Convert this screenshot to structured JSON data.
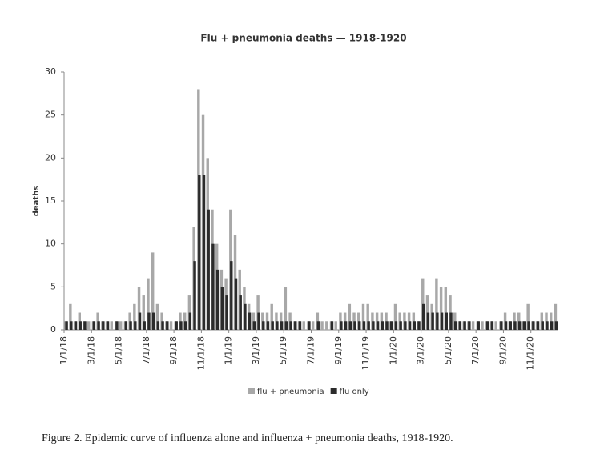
{
  "chart_data": {
    "type": "bar",
    "title": "Flu + pneumonia deaths — 1918-1920",
    "y_label": "deaths",
    "caption": "Figure 2. Epidemic curve of influenza alone and influenza + pneumonia deaths, 1918-1920.",
    "categories": [
      "1/1/18",
      null,
      null,
      null,
      null,
      null,
      "3/1/18",
      null,
      null,
      null,
      null,
      null,
      "5/1/18",
      null,
      null,
      null,
      null,
      null,
      "7/1/18",
      null,
      null,
      null,
      null,
      null,
      "9/1/18",
      null,
      null,
      null,
      null,
      null,
      "11/1/18",
      null,
      null,
      null,
      null,
      null,
      "1/1/19",
      null,
      null,
      null,
      null,
      null,
      "3/1/19",
      null,
      null,
      null,
      null,
      null,
      "5/1/19",
      null,
      null,
      null,
      null,
      null,
      "7/1/19",
      null,
      null,
      null,
      null,
      null,
      "9/1/19",
      null,
      null,
      null,
      null,
      null,
      "11/1/19",
      null,
      null,
      null,
      null,
      null,
      "1/1/20",
      null,
      null,
      null,
      null,
      null,
      "3/1/20",
      null,
      null,
      null,
      null,
      null,
      "5/1/20",
      null,
      null,
      null,
      null,
      null,
      "7/1/20",
      null,
      null,
      null,
      null,
      null,
      "9/1/20",
      null,
      null,
      null,
      null,
      null,
      "11/1/20",
      null,
      null,
      null,
      null,
      null
    ],
    "series": [
      {
        "name": "flu + pneumonia",
        "color": "#a8a8a8",
        "values": [
          1,
          3,
          1,
          2,
          1,
          1,
          1,
          2,
          1,
          1,
          1,
          1,
          1,
          1,
          2,
          3,
          5,
          4,
          6,
          9,
          3,
          2,
          1,
          1,
          1,
          2,
          2,
          4,
          12,
          28,
          25,
          20,
          14,
          10,
          7,
          6,
          14,
          11,
          7,
          5,
          3,
          2,
          4,
          2,
          2,
          3,
          2,
          2,
          5,
          2,
          1,
          1,
          1,
          1,
          1,
          2,
          1,
          1,
          1,
          1,
          2,
          2,
          3,
          2,
          2,
          3,
          3,
          2,
          2,
          2,
          2,
          1,
          3,
          2,
          2,
          2,
          2,
          1,
          6,
          4,
          3,
          6,
          5,
          5,
          4,
          2,
          1,
          1,
          1,
          1,
          1,
          1,
          1,
          1,
          1,
          1,
          2,
          1,
          2,
          2,
          1,
          3,
          1,
          1,
          2,
          2,
          2,
          3
        ]
      },
      {
        "name": "flu only",
        "color": "#2b2b2b",
        "values": [
          1,
          1,
          1,
          1,
          1,
          0,
          1,
          1,
          1,
          1,
          0,
          1,
          0,
          1,
          1,
          1,
          2,
          1,
          2,
          2,
          1,
          1,
          1,
          0,
          1,
          1,
          1,
          2,
          8,
          18,
          18,
          14,
          10,
          7,
          5,
          4,
          8,
          6,
          4,
          3,
          2,
          1,
          2,
          1,
          1,
          1,
          1,
          1,
          1,
          1,
          1,
          1,
          0,
          1,
          0,
          1,
          0,
          0,
          1,
          0,
          1,
          1,
          1,
          1,
          1,
          1,
          1,
          1,
          1,
          1,
          1,
          1,
          1,
          1,
          1,
          1,
          1,
          1,
          3,
          2,
          2,
          2,
          2,
          2,
          2,
          1,
          1,
          1,
          1,
          0,
          1,
          0,
          1,
          1,
          0,
          1,
          1,
          1,
          1,
          1,
          1,
          1,
          1,
          1,
          1,
          1,
          1,
          1
        ]
      }
    ],
    "ylim": [
      0,
      30
    ],
    "yticks": [
      0,
      5,
      10,
      15,
      20,
      25,
      30
    ],
    "grid": false
  }
}
